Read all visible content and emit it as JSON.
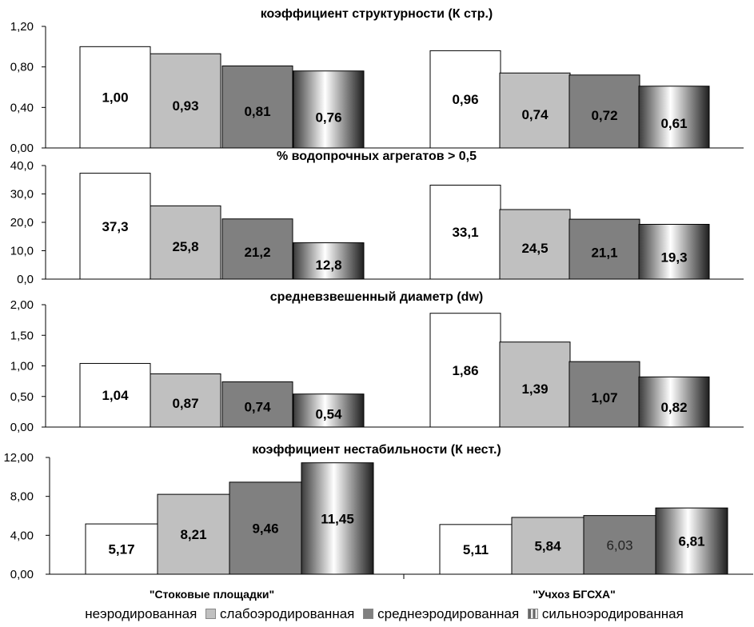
{
  "chart_data": [
    {
      "type": "bar",
      "title": "коэффициент структурности (К стр.)",
      "categories": [
        "\"Стоковые площадки\"",
        "\"Учхоз БГСХА\""
      ],
      "ylim": [
        0,
        1.2
      ],
      "yticks": [
        "0,00",
        "0,40",
        "0,80",
        "1,20"
      ],
      "series": [
        {
          "name": "неэродированная",
          "values": [
            1.0,
            0.96
          ],
          "labels": [
            "1,00",
            "0,96"
          ]
        },
        {
          "name": "слабоэродированная",
          "values": [
            0.93,
            0.74
          ],
          "labels": [
            "0,93",
            "0,74"
          ]
        },
        {
          "name": "среднеэродированная",
          "values": [
            0.81,
            0.72
          ],
          "labels": [
            "0,81",
            "0,72"
          ]
        },
        {
          "name": "сильноэродированная",
          "values": [
            0.76,
            0.61
          ],
          "labels": [
            "0,76",
            "0,61"
          ]
        }
      ]
    },
    {
      "type": "bar",
      "title": "% водопрочных агрегатов > 0,5",
      "categories": [
        "\"Стоковые площадки\"",
        "\"Учхоз БГСХА\""
      ],
      "ylim": [
        0,
        40
      ],
      "yticks": [
        "0,0",
        "10,0",
        "20,0",
        "30,0",
        "40,0"
      ],
      "series": [
        {
          "name": "неэродированная",
          "values": [
            37.3,
            33.1
          ],
          "labels": [
            "37,3",
            "33,1"
          ]
        },
        {
          "name": "слабоэродированная",
          "values": [
            25.8,
            24.5
          ],
          "labels": [
            "25,8",
            "24,5"
          ]
        },
        {
          "name": "среднеэродированная",
          "values": [
            21.2,
            21.1
          ],
          "labels": [
            "21,2",
            "21,1"
          ]
        },
        {
          "name": "сильноэродированная",
          "values": [
            12.8,
            19.3
          ],
          "labels": [
            "12,8",
            "19,3"
          ]
        }
      ]
    },
    {
      "type": "bar",
      "title": "средневзвешенный диаметр (dw)",
      "categories": [
        "\"Стоковые площадки\"",
        "\"Учхоз БГСХА\""
      ],
      "ylim": [
        0,
        2
      ],
      "yticks": [
        "0,00",
        "0,50",
        "1,00",
        "1,50",
        "2,00"
      ],
      "series": [
        {
          "name": "неэродированная",
          "values": [
            1.04,
            1.86
          ],
          "labels": [
            "1,04",
            "1,86"
          ]
        },
        {
          "name": "слабоэродированная",
          "values": [
            0.87,
            1.39
          ],
          "labels": [
            "0,87",
            "1,39"
          ]
        },
        {
          "name": "среднеэродированная",
          "values": [
            0.74,
            1.07
          ],
          "labels": [
            "0,74",
            "1,07"
          ]
        },
        {
          "name": "сильноэродированная",
          "values": [
            0.54,
            0.82
          ],
          "labels": [
            "0,54",
            "0,82"
          ]
        }
      ]
    },
    {
      "type": "bar",
      "title": "коэффициент нестабильности (К нест.)",
      "categories": [
        "\"Стоковые площадки\"",
        "\"Учхоз БГСХА\""
      ],
      "ylim": [
        0,
        12
      ],
      "yticks": [
        "0,00",
        "4,00",
        "8,00",
        "12,00"
      ],
      "series": [
        {
          "name": "неэродированная",
          "values": [
            5.17,
            5.11
          ],
          "labels": [
            "5,17",
            "5,11"
          ]
        },
        {
          "name": "слабоэродированная",
          "values": [
            8.21,
            5.84
          ],
          "labels": [
            "8,21",
            "5,84"
          ]
        },
        {
          "name": "среднеэродированная",
          "values": [
            9.46,
            6.03
          ],
          "labels": [
            "9,46",
            "6,03"
          ]
        },
        {
          "name": "сильноэродированная",
          "values": [
            11.45,
            6.81
          ],
          "labels": [
            "11,45",
            "6,81"
          ]
        }
      ]
    }
  ],
  "x_category_labels": [
    "\"Стоковые площадки\"",
    "\"Учхоз БГСХА\""
  ],
  "legend": {
    "placement": "bottom",
    "items": [
      {
        "name": "неэродированная",
        "color": "#ffffff"
      },
      {
        "name": "слабоэродированная",
        "color": "#c0c0c0"
      },
      {
        "name": "среднеэродированная",
        "color": "#808080"
      },
      {
        "name": "сильноэродированная",
        "color": "#3a3a3a"
      }
    ]
  },
  "colors": {
    "neerod": "#ffffff",
    "slabo": "#c0c0c0",
    "sredne": "#808080",
    "silno": "#3a3a3a"
  }
}
